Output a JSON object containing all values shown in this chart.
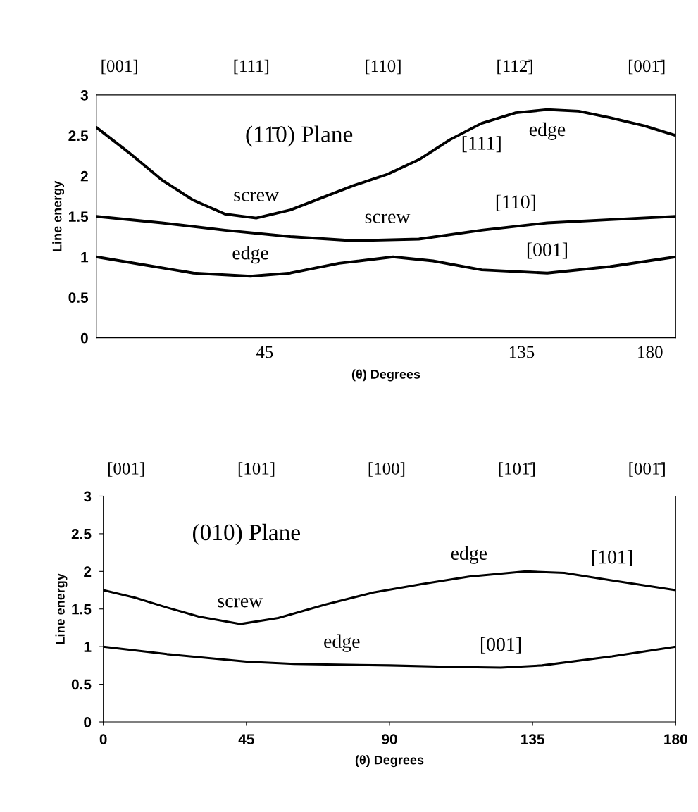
{
  "chart_data": [
    {
      "type": "line",
      "subtitle": "(11̄0) Plane",
      "xlabel": "(θ) Degrees",
      "ylabel": "Line energy",
      "xlim": [
        -14,
        189
      ],
      "ylim": [
        0,
        3
      ],
      "xticks": [
        45,
        135,
        180
      ],
      "yticks": [
        0,
        0.5,
        1,
        1.5,
        2,
        2.5,
        3
      ],
      "grid": false,
      "legend": false,
      "series": [
        {
          "color": "#000000",
          "x": [
            -14,
            -3,
            9,
            20,
            31,
            42,
            54,
            65,
            76,
            88,
            99,
            110,
            121,
            133,
            144,
            155,
            166,
            178,
            189
          ],
          "values": [
            2.6,
            2.3,
            1.95,
            1.7,
            1.53,
            1.48,
            1.58,
            1.73,
            1.88,
            2.02,
            2.2,
            2.45,
            2.65,
            2.78,
            2.82,
            2.8,
            2.72,
            2.62,
            2.5
          ]
        },
        {
          "color": "#000000",
          "x": [
            -14,
            9,
            31,
            54,
            76,
            99,
            121,
            144,
            166,
            189
          ],
          "values": [
            1.5,
            1.42,
            1.33,
            1.25,
            1.2,
            1.22,
            1.33,
            1.42,
            1.46,
            1.5
          ]
        },
        {
          "color": "#000000",
          "x": [
            -14,
            3,
            20,
            40,
            54,
            71,
            90,
            104,
            121,
            144,
            166,
            189
          ],
          "values": [
            1.0,
            0.9,
            0.8,
            0.76,
            0.8,
            0.92,
            1.0,
            0.95,
            0.84,
            0.8,
            0.88,
            1.0
          ]
        }
      ],
      "annotations": [
        "[001]",
        "[111]",
        "[110]",
        "[112̄]",
        "[001̄]",
        {
          "text": "screw",
          "x": 42,
          "y": 1.48
        },
        {
          "text": "screw",
          "x": 88,
          "y": 1.21
        },
        {
          "text": "edge",
          "x": 144,
          "y": 2.82
        },
        {
          "text": "[111]",
          "x": 121,
          "y": 2.65
        },
        {
          "text": "[110]",
          "x": 133,
          "y": 1.39
        },
        {
          "text": "edge",
          "x": 40,
          "y": 0.76
        },
        {
          "text": "[001]",
          "x": 144,
          "y": 0.8
        }
      ]
    },
    {
      "type": "line",
      "subtitle": "(010) Plane",
      "xlabel": "(θ) Degrees",
      "ylabel": "Line energy",
      "xlim": [
        0,
        180
      ],
      "ylim": [
        0,
        3
      ],
      "xticks": [
        0,
        45,
        90,
        135,
        180
      ],
      "yticks": [
        0,
        0.5,
        1,
        1.5,
        2,
        2.5,
        3
      ],
      "grid": false,
      "legend": false,
      "series": [
        {
          "color": "#000000",
          "x": [
            0,
            10,
            20,
            30,
            43,
            55,
            70,
            85,
            100,
            115,
            133,
            145,
            160,
            180
          ],
          "values": [
            1.75,
            1.65,
            1.52,
            1.4,
            1.3,
            1.38,
            1.56,
            1.72,
            1.83,
            1.93,
            2.0,
            1.98,
            1.88,
            1.75
          ]
        },
        {
          "color": "#000000",
          "x": [
            0,
            20,
            45,
            60,
            90,
            110,
            125,
            138,
            160,
            180
          ],
          "values": [
            1.0,
            0.9,
            0.8,
            0.77,
            0.75,
            0.73,
            0.72,
            0.75,
            0.87,
            1.0
          ]
        }
      ],
      "annotations": [
        "[001]",
        "[101]",
        "[100]",
        "[101̄]",
        "[001̄]",
        {
          "text": "screw",
          "x": 43,
          "y": 1.3
        },
        {
          "text": "edge",
          "x": 115,
          "y": 1.93
        },
        {
          "text": "[101]",
          "x": 160,
          "y": 1.88
        },
        {
          "text": "edge",
          "x": 75,
          "y": 0.76
        },
        {
          "text": "[001]",
          "x": 125,
          "y": 0.72
        }
      ]
    }
  ]
}
